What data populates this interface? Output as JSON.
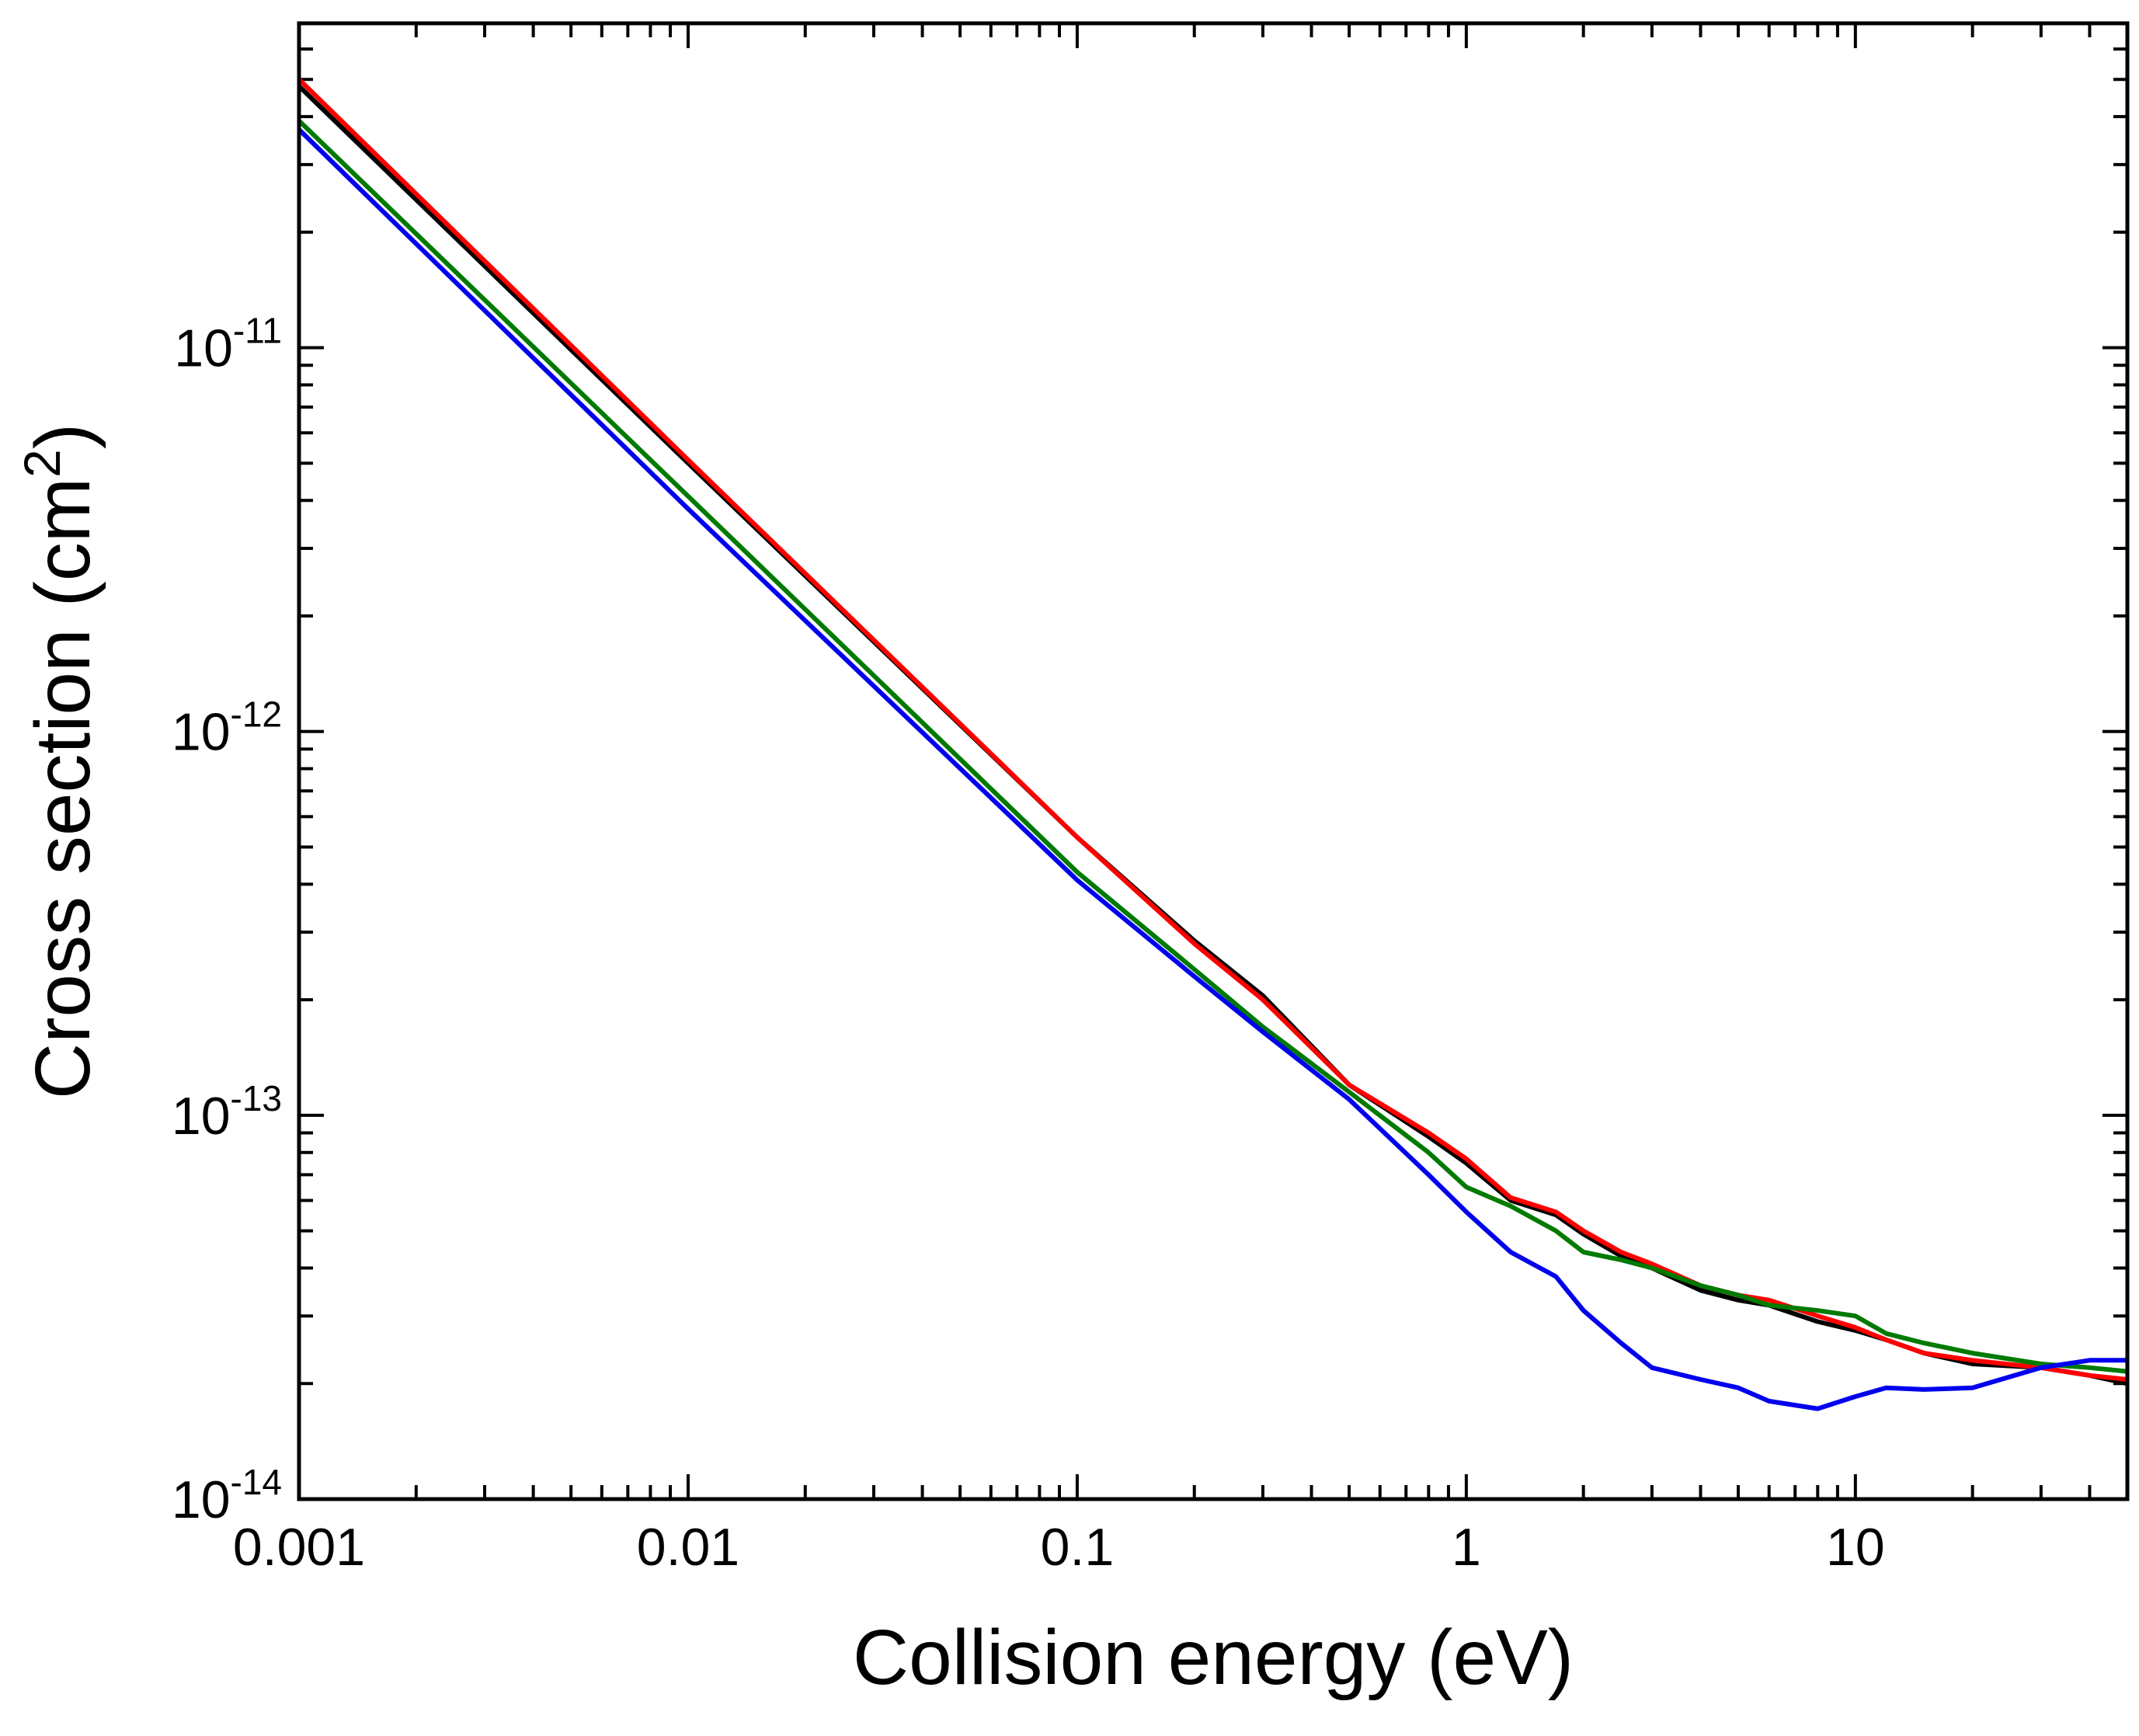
{
  "chart_data": {
    "type": "line",
    "title": "",
    "xlabel": "Collision energy (eV)",
    "ylabel_base": "Cross section (cm",
    "ylabel_sup": "2",
    "ylabel_tail": ")",
    "xscale": "log",
    "yscale": "log",
    "xlim": [
      0.001,
      50
    ],
    "ylim": [
      1e-14,
      7e-11
    ],
    "grid": false,
    "legend": "none",
    "x_ticks": [
      {
        "value": 0.001,
        "label": "0.001"
      },
      {
        "value": 0.01,
        "label": "0.01"
      },
      {
        "value": 0.1,
        "label": "0.1"
      },
      {
        "value": 1,
        "label": "1"
      },
      {
        "value": 10,
        "label": "10"
      }
    ],
    "y_ticks": [
      {
        "value": 1e-14,
        "base": "10",
        "exp": "-14"
      },
      {
        "value": 1e-13,
        "base": "10",
        "exp": "-13"
      },
      {
        "value": 1e-12,
        "base": "10",
        "exp": "-12"
      },
      {
        "value": 1e-11,
        "base": "10",
        "exp": "-11"
      }
    ],
    "series": [
      {
        "name": "black",
        "color": "#000000",
        "x": [
          0.001,
          0.01,
          0.1,
          0.2,
          0.3,
          0.5,
          0.8,
          1.0,
          1.3,
          1.7,
          2.0,
          2.5,
          3.0,
          4.0,
          5.0,
          6.0,
          8.0,
          10.0,
          12.0,
          15.0,
          20.0,
          30.0,
          40.0,
          50.0
        ],
        "y": [
          4.8e-11,
          5e-12,
          5.3e-13,
          2.85e-13,
          2.05e-13,
          1.2e-13,
          8.8e-14,
          7.5e-14,
          6e-14,
          5.5e-14,
          4.9e-14,
          4.3e-14,
          4e-14,
          3.5e-14,
          3.3e-14,
          3.2e-14,
          2.9e-14,
          2.75e-14,
          2.6e-14,
          2.4e-14,
          2.25e-14,
          2.2e-14,
          2.1e-14,
          2e-14
        ]
      },
      {
        "name": "red",
        "color": "#ff0000",
        "x": [
          0.001,
          0.01,
          0.1,
          0.2,
          0.3,
          0.5,
          0.8,
          1.0,
          1.3,
          1.7,
          2.0,
          2.5,
          3.0,
          4.0,
          5.0,
          6.0,
          8.0,
          10.0,
          12.0,
          15.0,
          20.0,
          30.0,
          40.0,
          50.0
        ],
        "y": [
          5e-11,
          5.1e-12,
          5.3e-13,
          2.8e-13,
          2e-13,
          1.2e-13,
          9e-14,
          7.7e-14,
          6.1e-14,
          5.6e-14,
          5e-14,
          4.4e-14,
          4.1e-14,
          3.6e-14,
          3.4e-14,
          3.3e-14,
          3e-14,
          2.8e-14,
          2.6e-14,
          2.4e-14,
          2.3e-14,
          2.2e-14,
          2.1e-14,
          2.05e-14
        ]
      },
      {
        "name": "green",
        "color": "#007a00",
        "x": [
          0.001,
          0.01,
          0.1,
          0.2,
          0.3,
          0.5,
          0.8,
          1.0,
          1.3,
          1.7,
          2.0,
          2.5,
          3.0,
          4.0,
          5.0,
          6.0,
          8.0,
          10.0,
          12.0,
          15.0,
          20.0,
          30.0,
          40.0,
          50.0
        ],
        "y": [
          3.9e-11,
          4.1e-12,
          4.3e-13,
          2.4e-13,
          1.7e-13,
          1.15e-13,
          8e-14,
          6.5e-14,
          5.8e-14,
          5e-14,
          4.4e-14,
          4.2e-14,
          4e-14,
          3.6e-14,
          3.4e-14,
          3.2e-14,
          3.1e-14,
          3e-14,
          2.7e-14,
          2.55e-14,
          2.4e-14,
          2.25e-14,
          2.2e-14,
          2.15e-14
        ]
      },
      {
        "name": "blue",
        "color": "#0000ee",
        "x": [
          0.001,
          0.01,
          0.1,
          0.2,
          0.3,
          0.5,
          0.8,
          1.0,
          1.3,
          1.7,
          2.0,
          2.5,
          3.0,
          4.0,
          5.0,
          6.0,
          8.0,
          10.0,
          12.0,
          15.0,
          20.0,
          30.0,
          40.0,
          50.0
        ],
        "y": [
          3.7e-11,
          3.8e-12,
          4.1e-13,
          2.3e-13,
          1.65e-13,
          1.1e-13,
          7e-14,
          5.6e-14,
          4.4e-14,
          3.8e-14,
          3.1e-14,
          2.55e-14,
          2.2e-14,
          2.05e-14,
          1.95e-14,
          1.8e-14,
          1.72e-14,
          1.85e-14,
          1.95e-14,
          1.93e-14,
          1.95e-14,
          2.2e-14,
          2.3e-14,
          2.3e-14
        ]
      }
    ]
  }
}
